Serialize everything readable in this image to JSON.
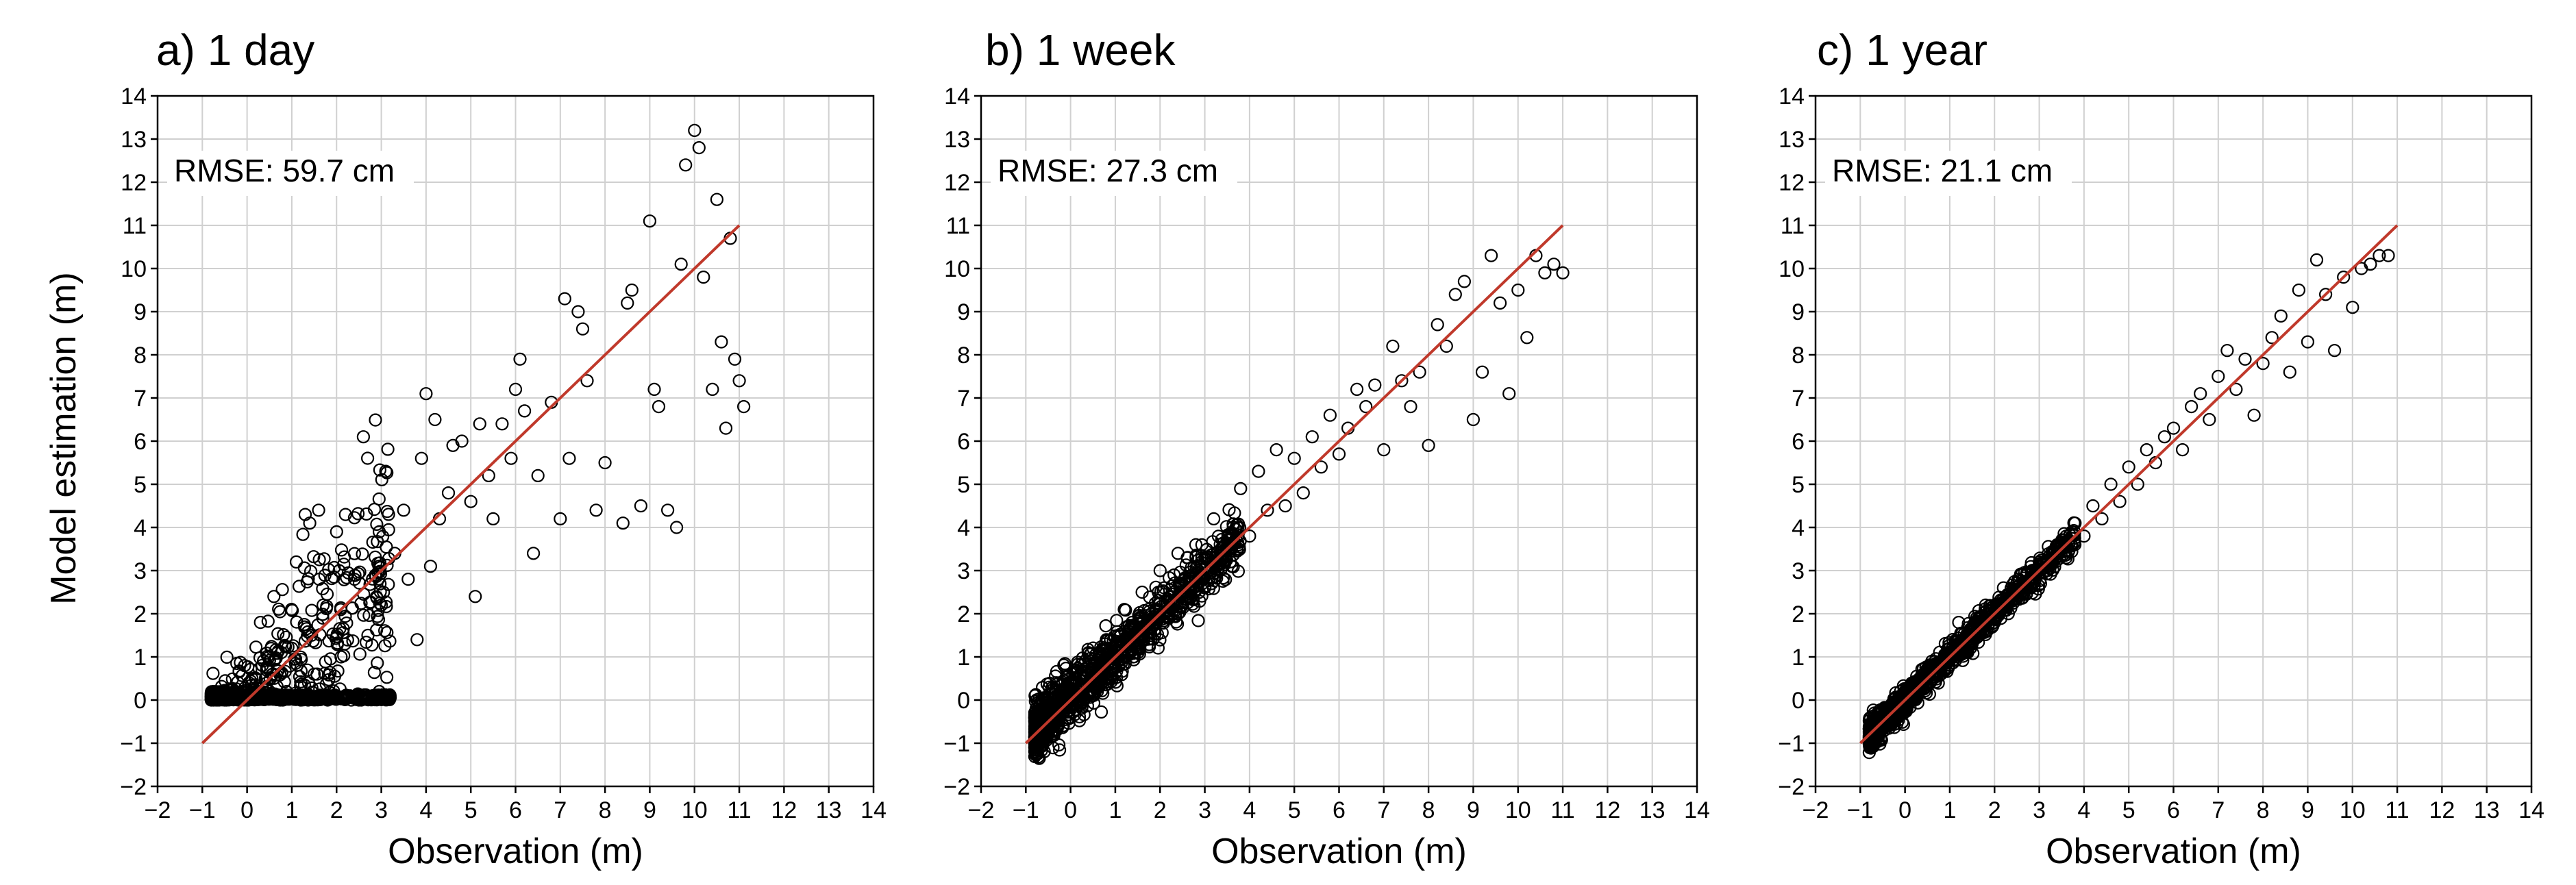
{
  "figure": {
    "ylabel": "Model estimation (m)",
    "xlabel": "Observation (m)"
  },
  "chart_data": [
    {
      "type": "scatter",
      "title": "a) 1 day",
      "annotation": "RMSE: 59.7 cm",
      "xlabel": "Observation (m)",
      "ylabel": "Model estimation (m)",
      "xlim": [
        -2,
        14
      ],
      "ylim": [
        -2,
        14
      ],
      "xticks": [
        -2,
        -1,
        0,
        1,
        2,
        3,
        4,
        5,
        6,
        7,
        8,
        9,
        10,
        11,
        12,
        13,
        14
      ],
      "yticks": [
        -2,
        -1,
        0,
        1,
        2,
        3,
        4,
        5,
        6,
        7,
        8,
        9,
        10,
        11,
        12,
        13,
        14
      ],
      "grid": true,
      "reference_line": {
        "x": [
          -1,
          11
        ],
        "y": [
          -1,
          11
        ],
        "color": "#c0392b"
      },
      "marker_color": "#000000",
      "points": [
        [
          -0.8,
          0
        ],
        [
          -0.5,
          0
        ],
        [
          -0.3,
          0.1
        ],
        [
          0,
          0
        ],
        [
          0.2,
          0.5
        ],
        [
          0.3,
          1.8
        ],
        [
          0.5,
          0.2
        ],
        [
          0.6,
          2.4
        ],
        [
          0.8,
          0
        ],
        [
          1,
          1.2
        ],
        [
          1.1,
          3.2
        ],
        [
          1.2,
          0
        ],
        [
          1.3,
          4.3
        ],
        [
          1.4,
          4.1
        ],
        [
          1.5,
          0.6
        ],
        [
          1.6,
          4.4
        ],
        [
          1.7,
          2.2
        ],
        [
          1.8,
          0
        ],
        [
          2,
          3.9
        ],
        [
          2.1,
          1
        ],
        [
          2.2,
          4.3
        ],
        [
          2.3,
          0.1
        ],
        [
          2.4,
          2.8
        ],
        [
          2.5,
          0
        ],
        [
          2.6,
          6.1
        ],
        [
          2.7,
          1.5
        ],
        [
          2.8,
          0.1
        ],
        [
          3,
          2.2
        ],
        [
          3.1,
          5.3
        ],
        [
          3.3,
          3.4
        ],
        [
          3.5,
          4.4
        ],
        [
          3.6,
          2.8
        ],
        [
          3.8,
          1.4
        ],
        [
          3.9,
          5.6
        ],
        [
          4,
          7.1
        ],
        [
          4.1,
          3.1
        ],
        [
          4.2,
          6.5
        ],
        [
          4.3,
          4.2
        ],
        [
          4.5,
          4.8
        ],
        [
          4.6,
          5.9
        ],
        [
          4.8,
          6
        ],
        [
          5,
          4.6
        ],
        [
          5.1,
          2.4
        ],
        [
          5.2,
          6.4
        ],
        [
          5.4,
          5.2
        ],
        [
          5.5,
          4.2
        ],
        [
          5.7,
          6.4
        ],
        [
          5.9,
          5.6
        ],
        [
          6,
          7.2
        ],
        [
          6.1,
          7.9
        ],
        [
          6.2,
          6.7
        ],
        [
          6.4,
          3.4
        ],
        [
          6.5,
          5.2
        ],
        [
          6.8,
          6.9
        ],
        [
          7,
          4.2
        ],
        [
          7.1,
          9.3
        ],
        [
          7.2,
          5.6
        ],
        [
          7.4,
          9
        ],
        [
          7.5,
          8.6
        ],
        [
          7.6,
          7.4
        ],
        [
          7.8,
          4.4
        ],
        [
          8,
          5.5
        ],
        [
          8.4,
          4.1
        ],
        [
          8.5,
          9.2
        ],
        [
          8.6,
          9.5
        ],
        [
          8.8,
          4.5
        ],
        [
          9,
          11.1
        ],
        [
          9.1,
          7.2
        ],
        [
          9.2,
          6.8
        ],
        [
          9.4,
          4.4
        ],
        [
          9.6,
          4
        ],
        [
          9.7,
          10.1
        ],
        [
          9.8,
          12.4
        ],
        [
          10,
          13.2
        ],
        [
          10.1,
          12.8
        ],
        [
          10.2,
          9.8
        ],
        [
          10.4,
          7.2
        ],
        [
          10.5,
          11.6
        ],
        [
          10.6,
          8.3
        ],
        [
          10.7,
          6.3
        ],
        [
          10.8,
          10.7
        ],
        [
          10.9,
          7.9
        ],
        [
          11,
          7.4
        ],
        [
          11.1,
          6.8
        ]
      ]
    },
    {
      "type": "scatter",
      "title": "b) 1 week",
      "annotation": "RMSE: 27.3 cm",
      "xlabel": "Observation (m)",
      "ylabel": "",
      "xlim": [
        -2,
        14
      ],
      "ylim": [
        -2,
        14
      ],
      "xticks": [
        -2,
        -1,
        0,
        1,
        2,
        3,
        4,
        5,
        6,
        7,
        8,
        9,
        10,
        11,
        12,
        13,
        14
      ],
      "yticks": [
        -2,
        -1,
        0,
        1,
        2,
        3,
        4,
        5,
        6,
        7,
        8,
        9,
        10,
        11,
        12,
        13,
        14
      ],
      "grid": true,
      "reference_line": {
        "x": [
          -1,
          11
        ],
        "y": [
          -1,
          11
        ],
        "color": "#c0392b"
      },
      "marker_color": "#000000",
      "points": [
        [
          -0.6,
          -0.3
        ],
        [
          -0.3,
          0
        ],
        [
          0,
          0.4
        ],
        [
          0.2,
          0
        ],
        [
          0.4,
          1.1
        ],
        [
          0.6,
          0.2
        ],
        [
          0.8,
          1.4
        ],
        [
          1,
          0.8
        ],
        [
          1.2,
          2.1
        ],
        [
          1.4,
          1
        ],
        [
          1.6,
          2.5
        ],
        [
          1.8,
          1.5
        ],
        [
          2,
          3
        ],
        [
          2.2,
          1.9
        ],
        [
          2.4,
          3.4
        ],
        [
          2.6,
          2.4
        ],
        [
          2.8,
          3.6
        ],
        [
          3,
          2.6
        ],
        [
          3.2,
          4.2
        ],
        [
          3.4,
          3.3
        ],
        [
          3.6,
          3.1
        ],
        [
          3.8,
          4.9
        ],
        [
          4,
          3.8
        ],
        [
          4.2,
          5.3
        ],
        [
          4.4,
          4.4
        ],
        [
          4.6,
          5.8
        ],
        [
          4.8,
          4.5
        ],
        [
          5,
          5.6
        ],
        [
          5.2,
          4.8
        ],
        [
          5.4,
          6.1
        ],
        [
          5.6,
          5.4
        ],
        [
          5.8,
          6.6
        ],
        [
          6,
          5.7
        ],
        [
          6.2,
          6.3
        ],
        [
          6.4,
          7.2
        ],
        [
          6.6,
          6.8
        ],
        [
          6.8,
          7.3
        ],
        [
          7,
          5.8
        ],
        [
          7.2,
          8.2
        ],
        [
          7.4,
          7.4
        ],
        [
          7.6,
          6.8
        ],
        [
          7.8,
          7.6
        ],
        [
          8,
          5.9
        ],
        [
          8.2,
          8.7
        ],
        [
          8.4,
          8.2
        ],
        [
          8.6,
          9.4
        ],
        [
          8.8,
          9.7
        ],
        [
          9,
          6.5
        ],
        [
          9.2,
          7.6
        ],
        [
          9.4,
          10.3
        ],
        [
          9.6,
          9.2
        ],
        [
          9.8,
          7.1
        ],
        [
          10,
          9.5
        ],
        [
          10.2,
          8.4
        ],
        [
          10.4,
          10.3
        ],
        [
          10.6,
          9.9
        ],
        [
          10.8,
          10.1
        ],
        [
          11,
          9.9
        ]
      ]
    },
    {
      "type": "scatter",
      "title": "c) 1 year",
      "annotation": "RMSE: 21.1 cm",
      "xlabel": "Observation (m)",
      "ylabel": "",
      "xlim": [
        -2,
        14
      ],
      "ylim": [
        -2,
        14
      ],
      "xticks": [
        -2,
        -1,
        0,
        1,
        2,
        3,
        4,
        5,
        6,
        7,
        8,
        9,
        10,
        11,
        12,
        13,
        14
      ],
      "yticks": [
        -2,
        -1,
        0,
        1,
        2,
        3,
        4,
        5,
        6,
        7,
        8,
        9,
        10,
        11,
        12,
        13,
        14
      ],
      "grid": true,
      "reference_line": {
        "x": [
          -1,
          11
        ],
        "y": [
          -1,
          11
        ],
        "color": "#c0392b"
      },
      "marker_color": "#000000",
      "points": [
        [
          -0.7,
          -0.5
        ],
        [
          -0.4,
          -0.2
        ],
        [
          -0.1,
          0.2
        ],
        [
          0.2,
          0.1
        ],
        [
          0.4,
          0.5
        ],
        [
          0.6,
          0.9
        ],
        [
          0.8,
          0.6
        ],
        [
          1,
          1.2
        ],
        [
          1.2,
          1.8
        ],
        [
          1.4,
          1.1
        ],
        [
          1.6,
          1.9
        ],
        [
          1.8,
          2.2
        ],
        [
          2,
          1.8
        ],
        [
          2.2,
          2.6
        ],
        [
          2.4,
          2.3
        ],
        [
          2.6,
          2.9
        ],
        [
          2.8,
          2.6
        ],
        [
          3,
          3.2
        ],
        [
          3.2,
          3.1
        ],
        [
          3.4,
          3.6
        ],
        [
          3.6,
          3.3
        ],
        [
          3.8,
          4.1
        ],
        [
          4,
          3.8
        ],
        [
          4.2,
          4.5
        ],
        [
          4.4,
          4.2
        ],
        [
          4.6,
          5
        ],
        [
          4.8,
          4.6
        ],
        [
          5,
          5.4
        ],
        [
          5.2,
          5
        ],
        [
          5.4,
          5.8
        ],
        [
          5.6,
          5.5
        ],
        [
          5.8,
          6.1
        ],
        [
          6,
          6.3
        ],
        [
          6.2,
          5.8
        ],
        [
          6.4,
          6.8
        ],
        [
          6.6,
          7.1
        ],
        [
          6.8,
          6.5
        ],
        [
          7,
          7.5
        ],
        [
          7.2,
          8.1
        ],
        [
          7.4,
          7.2
        ],
        [
          7.6,
          7.9
        ],
        [
          7.8,
          6.6
        ],
        [
          8,
          7.8
        ],
        [
          8.2,
          8.4
        ],
        [
          8.4,
          8.9
        ],
        [
          8.6,
          7.6
        ],
        [
          8.8,
          9.5
        ],
        [
          9,
          8.3
        ],
        [
          9.2,
          10.2
        ],
        [
          9.4,
          9.4
        ],
        [
          9.6,
          8.1
        ],
        [
          9.8,
          9.8
        ],
        [
          10,
          9.1
        ],
        [
          10.2,
          10
        ],
        [
          10.4,
          10.1
        ],
        [
          10.6,
          10.3
        ],
        [
          10.8,
          10.3
        ]
      ]
    }
  ]
}
